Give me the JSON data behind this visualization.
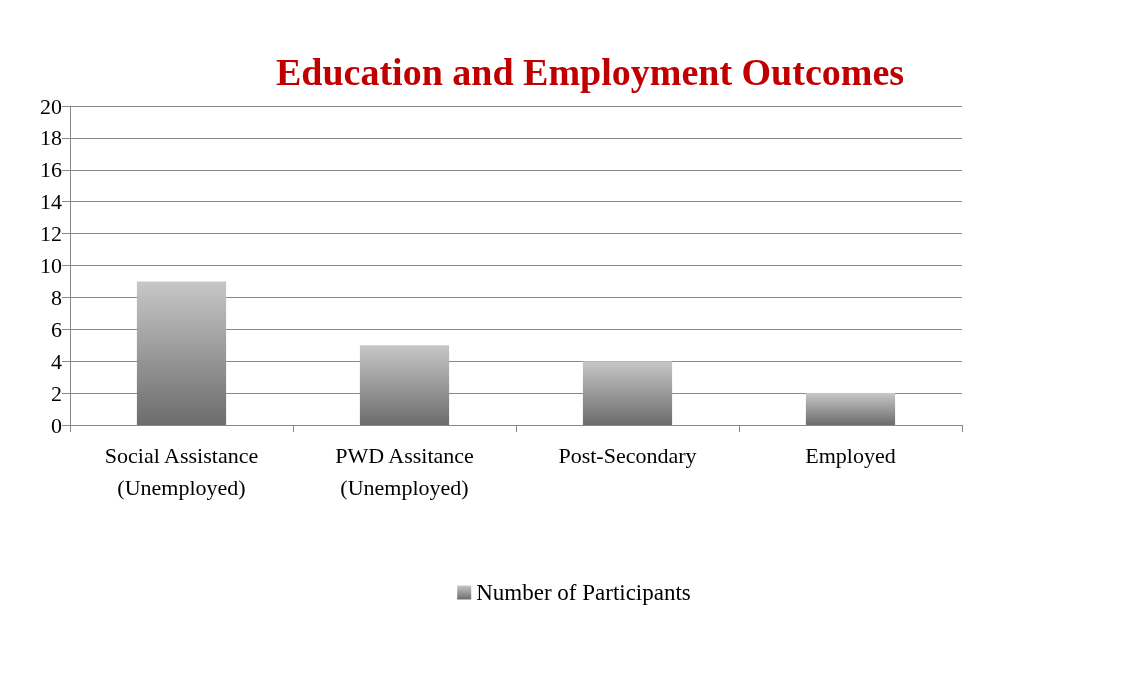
{
  "chart_data": {
    "type": "bar",
    "title": "Education and Employment Outcomes",
    "categories": [
      "Social Assistance\n(Unemployed)",
      "PWD Assitance\n(Unemployed)",
      "Post-Secondary",
      "Employed"
    ],
    "series": [
      {
        "name": "Number of Participants",
        "color": "#9a9a9a",
        "values": [
          9,
          5,
          4,
          2
        ]
      }
    ],
    "ylim": [
      0,
      20
    ],
    "yticks": [
      0,
      2,
      4,
      6,
      8,
      10,
      12,
      14,
      16,
      18,
      20
    ],
    "grid": "y",
    "legend": "bottom"
  }
}
